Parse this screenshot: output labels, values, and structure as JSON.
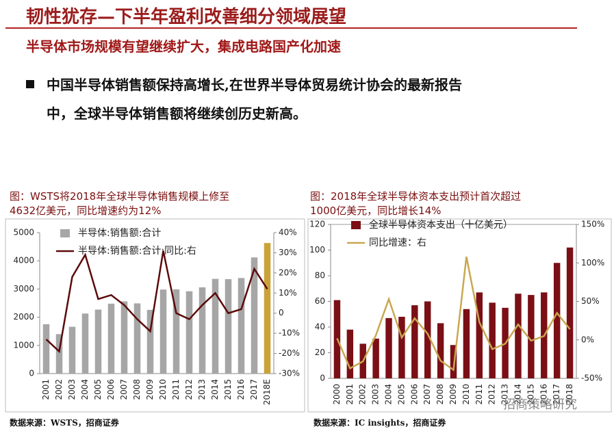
{
  "header": {
    "title": "韧性犹存—下半年盈利改善细分领域展望",
    "subtitle": "半导体市场规模有望继续扩大，集成电路国产化加速",
    "bullet": [
      "中国半导体销售额保持高增长,在世界半导体贸易统计协会的最新报告",
      "中，全球半导体销售额将继续创历史新高。"
    ],
    "watermark": "招商策略研究"
  },
  "chart_data": [
    {
      "type": "combo",
      "caption": [
        "图：WSTS将2018年全球半导体销售规模上修至",
        "4632亿美元，同比增速约为12%"
      ],
      "source": "数据来源：WSTS，招商证券",
      "legend": "top-left",
      "categories": [
        "2001",
        "2002",
        "2003",
        "2004",
        "2005",
        "2006",
        "2007",
        "2008",
        "2009",
        "2010",
        "2011",
        "2012",
        "2013",
        "2014",
        "2015",
        "2016",
        "2017",
        "2018E"
      ],
      "series": [
        {
          "name": "半导体:销售额:合计",
          "type": "bar",
          "color": "#a6a6a6",
          "colors": [
            "#a6a6a6",
            "#a6a6a6",
            "#a6a6a6",
            "#a6a6a6",
            "#a6a6a6",
            "#a6a6a6",
            "#a6a6a6",
            "#a6a6a6",
            "#a6a6a6",
            "#a6a6a6",
            "#a6a6a6",
            "#a6a6a6",
            "#a6a6a6",
            "#a6a6a6",
            "#a6a6a6",
            "#a6a6a6",
            "#a6a6a6",
            "#c9a33a"
          ],
          "values": [
            1750,
            1400,
            1660,
            2130,
            2270,
            2480,
            2560,
            2490,
            2260,
            2980,
            2990,
            2920,
            3060,
            3360,
            3350,
            3390,
            4120,
            4632
          ]
        },
        {
          "name": "半导体:销售额:合计:同比:右",
          "type": "line",
          "axis": "y2",
          "color": "#5c0a0a",
          "values": [
            -13,
            -19,
            18,
            29,
            7,
            9,
            4,
            -3,
            -9,
            31,
            0,
            -3,
            4,
            10,
            0,
            2,
            22,
            12
          ]
        }
      ],
      "ylim": [
        0,
        5000
      ],
      "yticks": [
        0,
        1000,
        2000,
        3000,
        4000,
        5000
      ],
      "y2lim": [
        -30,
        40
      ],
      "y2ticks": [
        {
          "value": -30,
          "label": "-30%"
        },
        {
          "value": -20,
          "label": "-20%"
        },
        {
          "value": -10,
          "label": "-10%"
        },
        0,
        {
          "value": 10,
          "label": "10%"
        },
        {
          "value": 20,
          "label": "20%"
        },
        {
          "value": 30,
          "label": "30%"
        },
        {
          "value": 40,
          "label": "40%"
        }
      ]
    },
    {
      "type": "combo",
      "caption": [
        "图：2018年全球半导体资本支出预计首次超过",
        "1000亿美元，同比增长14%"
      ],
      "source": "数据来源：IC insights，招商证券",
      "legend": "top-left",
      "categories": [
        "2000",
        "2001",
        "2002",
        "2003",
        "2004",
        "2005",
        "2006",
        "2007",
        "2008",
        "2009",
        "2010",
        "2011",
        "2012",
        "2013",
        "2014",
        "2015",
        "2016",
        "2017",
        "2018"
      ],
      "series": [
        {
          "name": "全球半导体资本支出（十亿美元）",
          "type": "bar",
          "color": "#7b0f16",
          "values": [
            61,
            38,
            27,
            31,
            47,
            48,
            57,
            60,
            43,
            26,
            54,
            67,
            59,
            55,
            66,
            65,
            67,
            90,
            102
          ]
        },
        {
          "name": "同比增速：右",
          "type": "line",
          "axis": "y2",
          "color": "#c8a850",
          "values": [
            2,
            -37,
            -28,
            6,
            53,
            3,
            28,
            8,
            -27,
            -39,
            108,
            23,
            -12,
            -5,
            20,
            -1,
            5,
            35,
            14
          ]
        }
      ],
      "ylim": [
        0,
        120
      ],
      "yticks": [
        0,
        20,
        40,
        60,
        80,
        100,
        120
      ],
      "y2lim": [
        -50,
        150
      ],
      "y2ticks": [
        {
          "value": -50,
          "label": "-50%"
        },
        {
          "value": 0,
          "label": "0%"
        },
        {
          "value": 50,
          "label": "50%"
        },
        {
          "value": 100,
          "label": "100%"
        },
        {
          "value": 150,
          "label": "150%"
        }
      ]
    }
  ]
}
